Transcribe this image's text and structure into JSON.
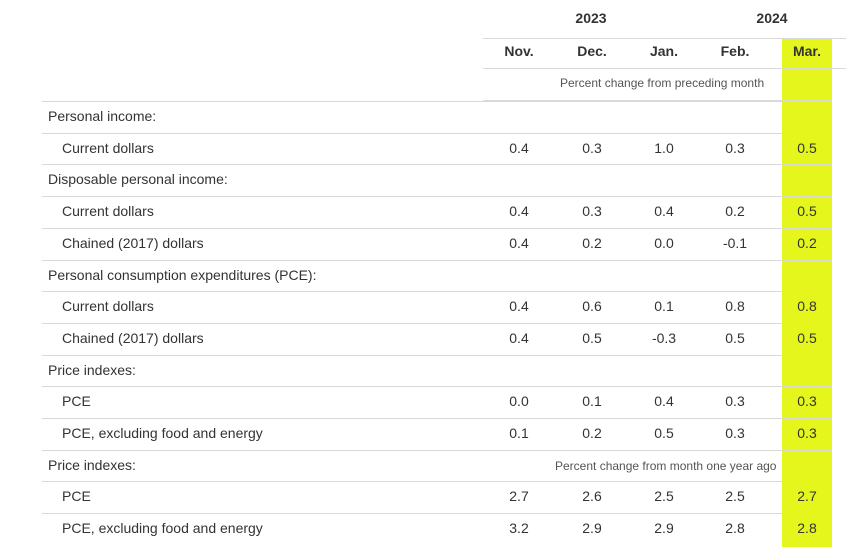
{
  "header": {
    "years": [
      "2023",
      "2024"
    ],
    "months": [
      "Nov.",
      "Dec.",
      "Jan.",
      "Feb.",
      "Mar."
    ],
    "subheader": "Percent change from preceding month"
  },
  "rows": [
    {
      "label": "Personal income:",
      "type": "section"
    },
    {
      "label": "Current dollars",
      "type": "data",
      "values": [
        "0.4",
        "0.3",
        "1.0",
        "0.3",
        "0.5"
      ]
    },
    {
      "label": "Disposable personal income:",
      "type": "section"
    },
    {
      "label": "Current dollars",
      "type": "data",
      "values": [
        "0.4",
        "0.3",
        "0.4",
        "0.2",
        "0.5"
      ]
    },
    {
      "label": "Chained (2017) dollars",
      "type": "data",
      "values": [
        "0.4",
        "0.2",
        "0.0",
        "-0.1",
        "0.2"
      ]
    },
    {
      "label": "Personal consumption expenditures (PCE):",
      "type": "section"
    },
    {
      "label": "Current dollars",
      "type": "data",
      "values": [
        "0.4",
        "0.6",
        "0.1",
        "0.8",
        "0.8"
      ]
    },
    {
      "label": "Chained (2017) dollars",
      "type": "data",
      "values": [
        "0.4",
        "0.5",
        "-0.3",
        "0.5",
        "0.5"
      ]
    },
    {
      "label": "Price indexes:",
      "type": "section"
    },
    {
      "label": "PCE",
      "type": "data",
      "values": [
        "0.0",
        "0.1",
        "0.4",
        "0.3",
        "0.3"
      ]
    },
    {
      "label": "PCE, excluding food and energy",
      "type": "data",
      "values": [
        "0.1",
        "0.2",
        "0.5",
        "0.3",
        "0.3"
      ]
    },
    {
      "label": "Price indexes:",
      "type": "section",
      "note": "Percent change from month one year ago"
    },
    {
      "label": "PCE",
      "type": "data",
      "values": [
        "2.7",
        "2.6",
        "2.5",
        "2.5",
        "2.7"
      ]
    },
    {
      "label": "PCE, excluding food and energy",
      "type": "data",
      "values": [
        "3.2",
        "2.9",
        "2.9",
        "2.8",
        "2.8"
      ]
    }
  ],
  "colors": {
    "highlight": "#e5f61c",
    "rule": "#d9d9d9",
    "text": "#333333"
  }
}
